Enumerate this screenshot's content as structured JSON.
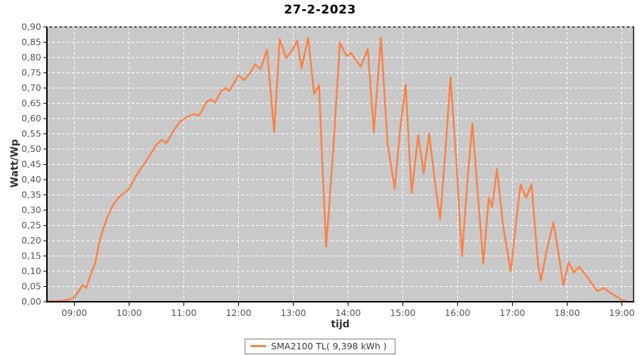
{
  "page": {
    "background": "#ffffff"
  },
  "chart_data": {
    "type": "line",
    "title": "27-2-2023",
    "xlabel": "tijd",
    "ylabel": "Watt/Wp",
    "ylim": [
      0,
      0.9
    ],
    "xlim_hours": [
      8.5,
      19.214
    ],
    "grid": true,
    "legend_position": "bottom-center",
    "plot_bg": "#c9c9c9",
    "grid_color": "#ffffff",
    "border_color": "#000000",
    "line_color": "#fa8248",
    "axis_text_color": "#545454",
    "y_ticks": [
      {
        "v": 0.0,
        "label": "0,00"
      },
      {
        "v": 0.05,
        "label": "0,05"
      },
      {
        "v": 0.1,
        "label": "0,10"
      },
      {
        "v": 0.15,
        "label": "0,15"
      },
      {
        "v": 0.2,
        "label": "0,20"
      },
      {
        "v": 0.25,
        "label": "0,25"
      },
      {
        "v": 0.3,
        "label": "0,30"
      },
      {
        "v": 0.35,
        "label": "0,35"
      },
      {
        "v": 0.4,
        "label": "0,40"
      },
      {
        "v": 0.45,
        "label": "0,45"
      },
      {
        "v": 0.5,
        "label": "0,50"
      },
      {
        "v": 0.55,
        "label": "0,55"
      },
      {
        "v": 0.6,
        "label": "0,60"
      },
      {
        "v": 0.65,
        "label": "0,65"
      },
      {
        "v": 0.7,
        "label": "0,70"
      },
      {
        "v": 0.75,
        "label": "0,75"
      },
      {
        "v": 0.8,
        "label": "0,80"
      },
      {
        "v": 0.85,
        "label": "0,85"
      },
      {
        "v": 0.9,
        "label": "0,90"
      }
    ],
    "x_ticks": [
      {
        "h": 9,
        "label": "09:00"
      },
      {
        "h": 10,
        "label": "10:00"
      },
      {
        "h": 11,
        "label": "11:00"
      },
      {
        "h": 12,
        "label": "12:00"
      },
      {
        "h": 13,
        "label": "13:00"
      },
      {
        "h": 14,
        "label": "14:00"
      },
      {
        "h": 15,
        "label": "15:00"
      },
      {
        "h": 16,
        "label": "16:00"
      },
      {
        "h": 17,
        "label": "17:00"
      },
      {
        "h": 18,
        "label": "18:00"
      },
      {
        "h": 19,
        "label": "19:00"
      }
    ],
    "legend": {
      "label": "SMA2100 TL( 9,398 kWh )"
    },
    "series": [
      {
        "name": "SMA2100 TL( 9,398 kWh )",
        "x_unit": "decimal_hours",
        "y_unit": "Watt/Wp",
        "points": [
          [
            8.5,
            0.002
          ],
          [
            8.68,
            0.002
          ],
          [
            8.8,
            0.004
          ],
          [
            8.92,
            0.008
          ],
          [
            9.0,
            0.015
          ],
          [
            9.08,
            0.035
          ],
          [
            9.15,
            0.055
          ],
          [
            9.22,
            0.045
          ],
          [
            9.3,
            0.09
          ],
          [
            9.38,
            0.125
          ],
          [
            9.45,
            0.19
          ],
          [
            9.52,
            0.235
          ],
          [
            9.6,
            0.275
          ],
          [
            9.7,
            0.315
          ],
          [
            9.8,
            0.34
          ],
          [
            9.9,
            0.355
          ],
          [
            10.0,
            0.37
          ],
          [
            10.12,
            0.41
          ],
          [
            10.25,
            0.445
          ],
          [
            10.38,
            0.48
          ],
          [
            10.5,
            0.515
          ],
          [
            10.6,
            0.53
          ],
          [
            10.68,
            0.52
          ],
          [
            10.83,
            0.565
          ],
          [
            10.93,
            0.59
          ],
          [
            11.05,
            0.605
          ],
          [
            11.18,
            0.615
          ],
          [
            11.28,
            0.61
          ],
          [
            11.42,
            0.655
          ],
          [
            11.5,
            0.663
          ],
          [
            11.57,
            0.652
          ],
          [
            11.68,
            0.69
          ],
          [
            11.77,
            0.7
          ],
          [
            11.83,
            0.69
          ],
          [
            12.0,
            0.742
          ],
          [
            12.1,
            0.726
          ],
          [
            12.22,
            0.752
          ],
          [
            12.3,
            0.778
          ],
          [
            12.4,
            0.762
          ],
          [
            12.52,
            0.825
          ],
          [
            12.65,
            0.555
          ],
          [
            12.75,
            0.86
          ],
          [
            12.87,
            0.798
          ],
          [
            13.0,
            0.83
          ],
          [
            13.07,
            0.855
          ],
          [
            13.15,
            0.765
          ],
          [
            13.27,
            0.865
          ],
          [
            13.38,
            0.68
          ],
          [
            13.47,
            0.71
          ],
          [
            13.53,
            0.45
          ],
          [
            13.6,
            0.18
          ],
          [
            13.73,
            0.5
          ],
          [
            13.85,
            0.85
          ],
          [
            13.97,
            0.805
          ],
          [
            14.05,
            0.815
          ],
          [
            14.23,
            0.77
          ],
          [
            14.36,
            0.828
          ],
          [
            14.47,
            0.555
          ],
          [
            14.6,
            0.865
          ],
          [
            14.72,
            0.52
          ],
          [
            14.85,
            0.37
          ],
          [
            14.95,
            0.565
          ],
          [
            15.05,
            0.71
          ],
          [
            15.16,
            0.355
          ],
          [
            15.28,
            0.545
          ],
          [
            15.38,
            0.42
          ],
          [
            15.48,
            0.55
          ],
          [
            15.58,
            0.4
          ],
          [
            15.68,
            0.27
          ],
          [
            15.78,
            0.5
          ],
          [
            15.87,
            0.735
          ],
          [
            15.98,
            0.45
          ],
          [
            16.08,
            0.15
          ],
          [
            16.18,
            0.4
          ],
          [
            16.27,
            0.585
          ],
          [
            16.37,
            0.35
          ],
          [
            16.47,
            0.125
          ],
          [
            16.57,
            0.34
          ],
          [
            16.63,
            0.31
          ],
          [
            16.72,
            0.435
          ],
          [
            16.83,
            0.25
          ],
          [
            16.97,
            0.1
          ],
          [
            17.08,
            0.28
          ],
          [
            17.15,
            0.385
          ],
          [
            17.25,
            0.34
          ],
          [
            17.35,
            0.385
          ],
          [
            17.47,
            0.12
          ],
          [
            17.52,
            0.07
          ],
          [
            17.63,
            0.17
          ],
          [
            17.75,
            0.26
          ],
          [
            17.85,
            0.15
          ],
          [
            17.93,
            0.055
          ],
          [
            18.03,
            0.13
          ],
          [
            18.12,
            0.095
          ],
          [
            18.22,
            0.115
          ],
          [
            18.33,
            0.09
          ],
          [
            18.43,
            0.065
          ],
          [
            18.55,
            0.035
          ],
          [
            18.67,
            0.045
          ],
          [
            18.78,
            0.03
          ],
          [
            18.92,
            0.015
          ],
          [
            19.0,
            0.006
          ],
          [
            19.08,
            0.002
          ]
        ]
      }
    ]
  }
}
